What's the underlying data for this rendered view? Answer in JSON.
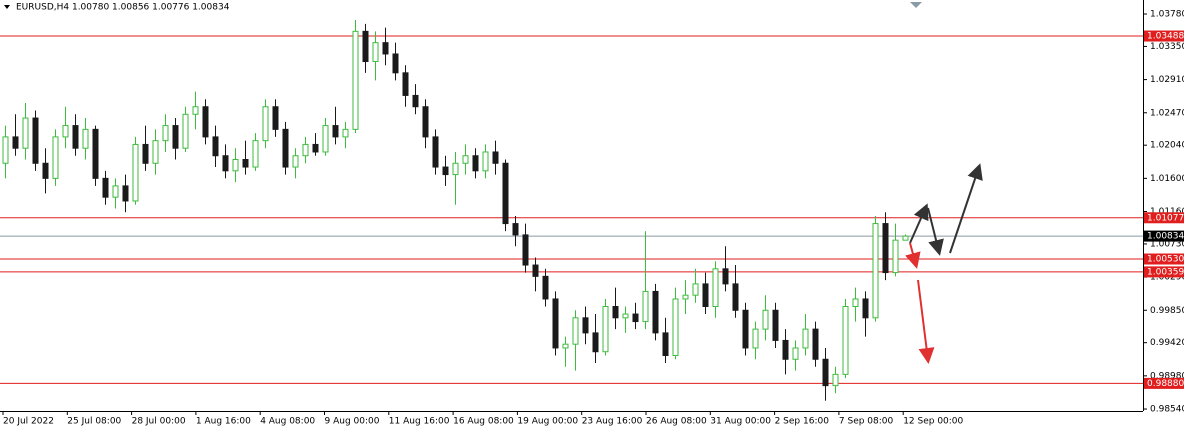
{
  "chart_data": {
    "type": "candlestick",
    "header": "EURUSD,H4  1.00780 1.00856 1.00776 1.00834",
    "up_color": "#3dbb3d",
    "down_color": "#1a1a1a",
    "level_color": "#e01e1e",
    "ylim": [
      0.98527,
      1.03966
    ],
    "yticks": [
      {
        "value": 1.0378,
        "label": "1.03780"
      },
      {
        "value": 1.0335,
        "label": "1.03350"
      },
      {
        "value": 1.0291,
        "label": "1.02910"
      },
      {
        "value": 1.0247,
        "label": "1.02470"
      },
      {
        "value": 1.0204,
        "label": "1.02040"
      },
      {
        "value": 1.016,
        "label": "1.01600"
      },
      {
        "value": 1.0116,
        "label": "1.01160"
      },
      {
        "value": 1.0073,
        "label": "1.00730"
      },
      {
        "value": 1.0029,
        "label": "1.00290"
      },
      {
        "value": 0.9985,
        "label": "0.99850"
      },
      {
        "value": 0.9942,
        "label": "0.99420"
      },
      {
        "value": 0.9898,
        "label": "0.98980"
      },
      {
        "value": 0.9854,
        "label": "0.98540"
      }
    ],
    "xlabels": [
      "20 Jul 2022",
      "25 Jul 08:00",
      "28 Jul 00:00",
      "1 Aug 16:00",
      "4 Aug 08:00",
      "9 Aug 00:00",
      "11 Aug 16:00",
      "16 Aug 08:00",
      "19 Aug 00:00",
      "23 Aug 16:00",
      "26 Aug 08:00",
      "31 Aug 00:00",
      "2 Sep 16:00",
      "7 Sep 08:00",
      "12 Sep 00:00"
    ],
    "levels": [
      {
        "value": 1.03488,
        "label": "1.03488"
      },
      {
        "value": 1.01077,
        "label": "1.01077"
      },
      {
        "value": 1.0053,
        "label": "1.00530"
      },
      {
        "value": 1.00359,
        "label": "1.00359"
      },
      {
        "value": 0.9888,
        "label": "0.98880"
      }
    ],
    "current": {
      "value": 1.00834,
      "label": "1.00834"
    },
    "candles": [
      [
        1.018,
        1.023,
        1.016,
        1.0215
      ],
      [
        1.0215,
        1.0245,
        1.019,
        1.02
      ],
      [
        1.02,
        1.026,
        1.0185,
        1.024
      ],
      [
        1.024,
        1.025,
        1.017,
        1.018
      ],
      [
        1.018,
        1.02,
        1.014,
        1.016
      ],
      [
        1.016,
        1.0225,
        1.015,
        1.0215
      ],
      [
        1.0215,
        1.0255,
        1.02,
        1.023
      ],
      [
        1.023,
        1.0245,
        1.019,
        1.02
      ],
      [
        1.02,
        1.024,
        1.0185,
        1.0225
      ],
      [
        1.0225,
        1.023,
        1.015,
        1.016
      ],
      [
        1.016,
        1.017,
        1.0125,
        1.0135
      ],
      [
        1.0135,
        1.016,
        1.012,
        1.015
      ],
      [
        1.015,
        1.0165,
        1.0115,
        1.013
      ],
      [
        1.013,
        1.0215,
        1.0125,
        1.0205
      ],
      [
        1.0205,
        1.023,
        1.017,
        1.018
      ],
      [
        1.018,
        1.0225,
        1.0165,
        1.021
      ],
      [
        1.021,
        1.0245,
        1.0195,
        1.023
      ],
      [
        1.023,
        1.024,
        1.0185,
        1.02
      ],
      [
        1.02,
        1.0255,
        1.0195,
        1.0245
      ],
      [
        1.0245,
        1.0275,
        1.0225,
        1.0255
      ],
      [
        1.0255,
        1.0265,
        1.0205,
        1.0215
      ],
      [
        1.0215,
        1.023,
        1.0175,
        1.019
      ],
      [
        1.019,
        1.0205,
        1.016,
        1.017
      ],
      [
        1.017,
        1.02,
        1.0155,
        1.0185
      ],
      [
        1.0185,
        1.021,
        1.0165,
        1.0175
      ],
      [
        1.0175,
        1.022,
        1.017,
        1.021
      ],
      [
        1.021,
        1.0265,
        1.02,
        1.0255
      ],
      [
        1.0255,
        1.0265,
        1.0215,
        1.0225
      ],
      [
        1.0225,
        1.0235,
        1.0165,
        1.0175
      ],
      [
        1.0175,
        1.02,
        1.016,
        1.019
      ],
      [
        1.019,
        1.0215,
        1.018,
        1.0205
      ],
      [
        1.0205,
        1.022,
        1.019,
        1.0195
      ],
      [
        1.0195,
        1.024,
        1.019,
        1.023
      ],
      [
        1.023,
        1.0255,
        1.0205,
        1.0215
      ],
      [
        1.0215,
        1.0235,
        1.02,
        1.0225
      ],
      [
        1.0225,
        1.037,
        1.022,
        1.0355
      ],
      [
        1.0355,
        1.0365,
        1.03,
        1.0315
      ],
      [
        1.0315,
        1.0355,
        1.029,
        1.034
      ],
      [
        1.034,
        1.036,
        1.031,
        1.0325
      ],
      [
        1.0325,
        1.034,
        1.029,
        1.03
      ],
      [
        1.03,
        1.031,
        1.0255,
        1.027
      ],
      [
        1.027,
        1.0285,
        1.0245,
        1.0255
      ],
      [
        1.0255,
        1.0265,
        1.02,
        1.0215
      ],
      [
        1.0215,
        1.0225,
        1.0165,
        1.0175
      ],
      [
        1.0175,
        1.019,
        1.015,
        1.0165
      ],
      [
        1.0165,
        1.0195,
        1.0125,
        1.018
      ],
      [
        1.018,
        1.0205,
        1.0165,
        1.019
      ],
      [
        1.019,
        1.02,
        1.016,
        1.017
      ],
      [
        1.017,
        1.0205,
        1.016,
        1.0195
      ],
      [
        1.0195,
        1.021,
        1.0165,
        1.018
      ],
      [
        1.018,
        1.0185,
        1.009,
        1.01
      ],
      [
        1.01,
        1.011,
        1.007,
        1.0085
      ],
      [
        1.0085,
        1.01,
        1.0035,
        1.0045
      ],
      [
        1.0045,
        1.0055,
        1.001,
        1.003
      ],
      [
        1.003,
        1.004,
        0.999,
        1.0
      ],
      [
        1.0,
        1.001,
        0.9925,
        0.9935
      ],
      [
        0.9935,
        0.995,
        0.991,
        0.994
      ],
      [
        0.994,
        0.9985,
        0.9905,
        0.9975
      ],
      [
        0.9975,
        0.999,
        0.994,
        0.9955
      ],
      [
        0.9955,
        0.998,
        0.9915,
        0.993
      ],
      [
        0.993,
        1.0,
        0.9925,
        0.999
      ],
      [
        0.999,
        1.0015,
        0.996,
        0.9975
      ],
      [
        0.9975,
        0.999,
        0.9955,
        0.998
      ],
      [
        0.998,
        0.9995,
        0.996,
        0.997
      ],
      [
        0.997,
        1.009,
        0.996,
        1.001
      ],
      [
        1.001,
        1.002,
        0.9945,
        0.9955
      ],
      [
        0.9955,
        0.9975,
        0.9915,
        0.9925
      ],
      [
        0.9925,
        1.0015,
        0.992,
        1.0
      ],
      [
        1.0,
        1.0025,
        0.998,
        1.0005
      ],
      [
        1.0005,
        1.004,
        0.9995,
        1.002
      ],
      [
        1.002,
        1.0035,
        0.998,
        0.999
      ],
      [
        0.999,
        1.005,
        0.9975,
        1.004
      ],
      [
        1.004,
        1.007,
        1.001,
        1.002
      ],
      [
        1.002,
        1.0045,
        0.9975,
        0.9985
      ],
      [
        0.9985,
        0.9995,
        0.9925,
        0.9935
      ],
      [
        0.9935,
        0.997,
        0.992,
        0.996
      ],
      [
        0.996,
        1.0005,
        0.9945,
        0.9985
      ],
      [
        0.9985,
        0.9995,
        0.9935,
        0.9945
      ],
      [
        0.9945,
        0.996,
        0.99,
        0.992
      ],
      [
        0.992,
        0.9945,
        0.9905,
        0.9935
      ],
      [
        0.9935,
        0.998,
        0.9925,
        0.996
      ],
      [
        0.996,
        0.997,
        0.991,
        0.992
      ],
      [
        0.992,
        0.9935,
        0.9865,
        0.9885
      ],
      [
        0.9885,
        0.991,
        0.9875,
        0.99
      ],
      [
        0.99,
        1.0,
        0.9895,
        0.999
      ],
      [
        0.999,
        1.0015,
        0.997,
        1.0
      ],
      [
        1.0,
        1.001,
        0.995,
        0.9975
      ],
      [
        0.9975,
        1.011,
        0.997,
        1.01
      ],
      [
        1.01,
        1.0115,
        1.0025,
        1.0035
      ],
      [
        1.0035,
        1.01,
        1.003,
        1.0078
      ],
      [
        1.0078,
        1.00856,
        1.00776,
        1.00834
      ]
    ]
  }
}
